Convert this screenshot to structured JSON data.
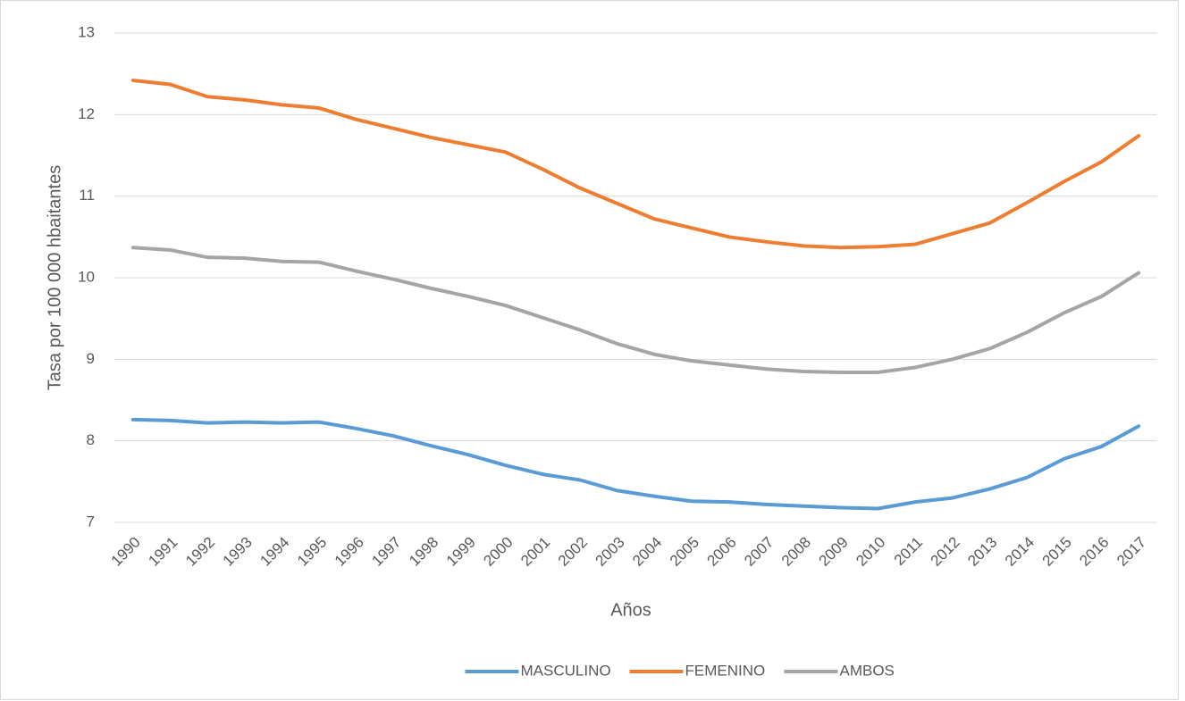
{
  "chart_data": {
    "type": "line",
    "x_label": "Años",
    "y_label": "Tasa por 100 000 hbaitantes",
    "categories": [
      "1990",
      "1991",
      "1992",
      "1993",
      "1994",
      "1995",
      "1996",
      "1997",
      "1998",
      "1999",
      "2000",
      "2001",
      "2002",
      "2003",
      "2004",
      "2005",
      "2006",
      "2007",
      "2008",
      "2009",
      "2010",
      "2011",
      "2012",
      "2013",
      "2014",
      "2015",
      "2016",
      "2017"
    ],
    "series": [
      {
        "name": "MASCULINO",
        "color": "#5b9bd5",
        "values": [
          8.26,
          8.25,
          8.22,
          8.23,
          8.22,
          8.23,
          8.15,
          8.06,
          7.94,
          7.83,
          7.7,
          7.59,
          7.52,
          7.39,
          7.32,
          7.26,
          7.25,
          7.22,
          7.2,
          7.18,
          7.17,
          7.25,
          7.3,
          7.41,
          7.55,
          7.78,
          7.93,
          8.18
        ]
      },
      {
        "name": "FEMENINO",
        "color": "#ed7d31",
        "values": [
          12.42,
          12.37,
          12.22,
          12.18,
          12.12,
          12.08,
          11.94,
          11.83,
          11.72,
          11.63,
          11.54,
          11.33,
          11.1,
          10.91,
          10.72,
          10.61,
          10.5,
          10.44,
          10.39,
          10.37,
          10.38,
          10.41,
          10.54,
          10.67,
          10.92,
          11.18,
          11.42,
          11.74
        ]
      },
      {
        "name": "AMBOS",
        "color": "#a5a5a5",
        "values": [
          10.37,
          10.34,
          10.25,
          10.24,
          10.2,
          10.19,
          10.08,
          9.98,
          9.87,
          9.77,
          9.66,
          9.51,
          9.36,
          9.19,
          9.06,
          8.98,
          8.93,
          8.88,
          8.85,
          8.84,
          8.84,
          8.9,
          9.0,
          9.13,
          9.33,
          9.57,
          9.77,
          10.06
        ]
      }
    ],
    "ylim": [
      7,
      13
    ],
    "yticks": [
      7,
      8,
      9,
      10,
      11,
      12,
      13
    ],
    "grid": true,
    "legend": "bottom"
  }
}
